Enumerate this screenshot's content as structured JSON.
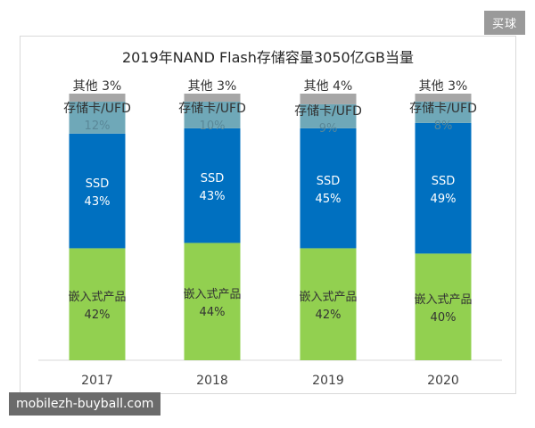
{
  "badge": "买球",
  "watermark": "mobilezh-buyball.com",
  "colors": {
    "embedded": "#92d050",
    "ssd": "#0070c0",
    "storage_card_ufd": "#6fa8b8",
    "other": "#a6a6a6"
  },
  "chart_data": {
    "type": "bar",
    "stacked": true,
    "percent": true,
    "title": "2019年NAND Flash存储容量3050亿GB当量",
    "categories": [
      "2017",
      "2018",
      "2019",
      "2020"
    ],
    "ylim": [
      0,
      100
    ],
    "grid": false,
    "legend": "none",
    "series": [
      {
        "name": "嵌入式产品",
        "values": [
          42,
          44,
          42,
          40
        ],
        "labels": [
          "42%",
          "44%",
          "42%",
          "40%"
        ]
      },
      {
        "name": "SSD",
        "values": [
          43,
          43,
          45,
          49
        ],
        "labels": [
          "43%",
          "43%",
          "45%",
          "49%"
        ]
      },
      {
        "name": "存储卡/UFD",
        "values": [
          12,
          10,
          9,
          8
        ],
        "labels": [
          "12%",
          "10%",
          "9%",
          "8%"
        ]
      },
      {
        "name": "其他",
        "values": [
          3,
          3,
          4,
          3
        ],
        "labels": [
          "3%",
          "3%",
          "4%",
          "3%"
        ]
      }
    ]
  }
}
